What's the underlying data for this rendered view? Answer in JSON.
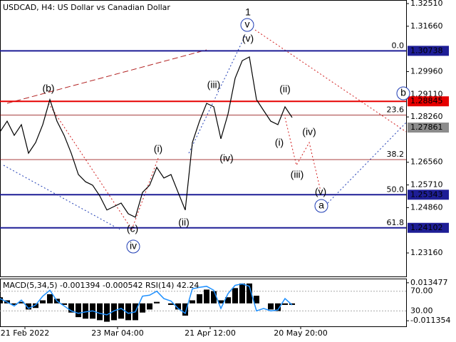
{
  "chart_data": [
    {
      "type": "line",
      "title": "USDCAD, H4:  US Dollar vs Canadian Dollar",
      "x": [
        0,
        1,
        2,
        3,
        4,
        5,
        6,
        7,
        8,
        9,
        10,
        11,
        12,
        13,
        14,
        15,
        16,
        17,
        18,
        19,
        20,
        21,
        22,
        23,
        24,
        25,
        26,
        27,
        28,
        29,
        30,
        31,
        32,
        33,
        34,
        35,
        36,
        37,
        38,
        39,
        40,
        41
      ],
      "series": [
        {
          "name": "USDCAD",
          "color": "#000000",
          "values": [
            1.277,
            1.281,
            1.2757,
            1.2797,
            1.269,
            1.273,
            1.2797,
            1.2891,
            1.281,
            1.2757,
            1.269,
            1.261,
            1.2583,
            1.257,
            1.253,
            1.2477,
            1.249,
            1.2503,
            1.2463,
            1.245,
            1.2543,
            1.257,
            1.2637,
            1.2597,
            1.261,
            1.2543,
            1.2477,
            1.273,
            1.281,
            1.2877,
            1.2864,
            1.2744,
            1.2837,
            1.2971,
            1.3037,
            1.3051,
            1.2891,
            1.285,
            1.281,
            1.2797,
            1.2864,
            1.2824
          ]
        }
      ],
      "xlim": [
        0,
        57
      ],
      "xticks": [
        {
          "value": 3.5,
          "label": "21 Feb 2022"
        },
        {
          "value": 16.5,
          "label": "23 Mar 04:00"
        },
        {
          "value": 29.5,
          "label": "21 Apr 12:00"
        },
        {
          "value": 42.2,
          "label": "20 May 20:00"
        }
      ],
      "ylim": [
        1.22279,
        1.32644
      ],
      "yticks": [
        {
          "value": 1.3251,
          "label": "1.32510"
        },
        {
          "value": 1.3166,
          "label": "1.31660"
        },
        {
          "value": 1.2996,
          "label": "1.29960"
        },
        {
          "value": 1.2911,
          "label": "1.29110"
        },
        {
          "value": 1.2826,
          "label": "1.28260"
        },
        {
          "value": 1.2656,
          "label": "1.26560"
        },
        {
          "value": 1.2571,
          "label": "1.25710"
        },
        {
          "value": 1.2486,
          "label": "1.24860"
        },
        {
          "value": 1.2316,
          "label": "1.23160"
        }
      ],
      "price_levels": [
        {
          "value": 1.30738,
          "color": "#1e1e96",
          "line": true
        },
        {
          "value": 1.28845,
          "color": "#e60000",
          "line": true
        },
        {
          "value": 1.27861,
          "color": "#8c8c8c",
          "line": false
        },
        {
          "value": 1.25343,
          "color": "#1e1e96",
          "line": true
        },
        {
          "value": 1.24102,
          "color": "#1e1e96",
          "line": true
        }
      ],
      "fib_levels": [
        {
          "value": 1.30738,
          "label": "0.0"
        },
        {
          "value": 1.2833,
          "label": "23.6"
        },
        {
          "value": 1.2666,
          "label": "38.2"
        },
        {
          "value": 1.25343,
          "label": "50.0"
        },
        {
          "value": 1.24102,
          "label": "61.8"
        }
      ],
      "annotations": [
        {
          "text": "1",
          "color": "#b22222",
          "circled": false
        },
        {
          "text": "v",
          "color": "#1e3cb4",
          "circled": true
        },
        {
          "text": "(v)",
          "color": "#d21e1e",
          "circled": false
        },
        {
          "text": "(b)",
          "color": "#d21e1e",
          "circled": false
        },
        {
          "text": "(iii)",
          "color": "#d21e1e",
          "circled": false
        },
        {
          "text": "(ii)",
          "color": "#d21e1e",
          "circled": false
        },
        {
          "text": "(i)",
          "color": "#d21e1e",
          "circled": false
        },
        {
          "text": "(iv)",
          "color": "#d21e1e",
          "circled": false
        },
        {
          "text": "(i)",
          "color": "#d21e1e",
          "circled": false
        },
        {
          "text": "(iv)",
          "color": "#d21e1e",
          "circled": false
        },
        {
          "text": "(iii)",
          "color": "#d21e1e",
          "circled": false
        },
        {
          "text": "(v)",
          "color": "#d21e1e",
          "circled": false
        },
        {
          "text": "a",
          "color": "#1e3cb4",
          "circled": true
        },
        {
          "text": "(c)",
          "color": "#d21e1e",
          "circled": false
        },
        {
          "text": "iv",
          "color": "#1e3cb4",
          "circled": true
        },
        {
          "text": "(ii)",
          "color": "#d21e1e",
          "circled": false
        },
        {
          "text": "b",
          "color": "#1e3cb4",
          "circled": true
        }
      ]
    },
    {
      "type": "indicator",
      "title": "MACD(5,34,5) -0.001394 -0.000542 RSI(14) 42.24",
      "x": [
        0,
        1,
        2,
        3,
        4,
        5,
        6,
        7,
        8,
        9,
        10,
        11,
        12,
        13,
        14,
        15,
        16,
        17,
        18,
        19,
        20,
        21,
        22,
        23,
        24,
        25,
        26,
        27,
        28,
        29,
        30,
        31,
        32,
        33,
        34,
        35,
        36,
        37,
        38,
        39,
        40,
        41
      ],
      "series": [
        {
          "name": "MACD",
          "color": "#000000",
          "values": [
            0.004,
            0.002,
            -0.001,
            0.001,
            -0.004,
            -0.003,
            0.002,
            0.006,
            0.003,
            -0.001,
            -0.006,
            -0.009,
            -0.01,
            -0.01,
            -0.011,
            -0.012,
            -0.011,
            -0.01,
            -0.011,
            -0.011,
            -0.006,
            -0.004,
            0.001,
            0.0,
            -0.001,
            -0.004,
            -0.008,
            0.002,
            0.006,
            0.009,
            0.008,
            0.002,
            0.004,
            0.01,
            0.013,
            0.013,
            0.005,
            0.0,
            -0.004,
            -0.005,
            -0.001,
            -0.001
          ]
        },
        {
          "name": "RSI",
          "color": "#1e90ff",
          "axis": "y2",
          "values": [
            55,
            48,
            40,
            52,
            35,
            42,
            60,
            72,
            50,
            40,
            30,
            25,
            28,
            30,
            25,
            22,
            30,
            35,
            25,
            28,
            60,
            62,
            70,
            55,
            50,
            35,
            25,
            75,
            78,
            80,
            72,
            35,
            65,
            82,
            85,
            80,
            30,
            35,
            30,
            32,
            55,
            42
          ]
        }
      ],
      "xlim": [
        0,
        57
      ],
      "ylim": [
        -0.015,
        0.0162
      ],
      "yticks": [
        0.013477,
        -0.011354
      ],
      "y2lim": [
        -1.4,
        95.7
      ],
      "y2ticks": [
        {
          "value": 70,
          "label": "70.00"
        },
        {
          "value": 30,
          "label": "30.00"
        }
      ]
    }
  ]
}
